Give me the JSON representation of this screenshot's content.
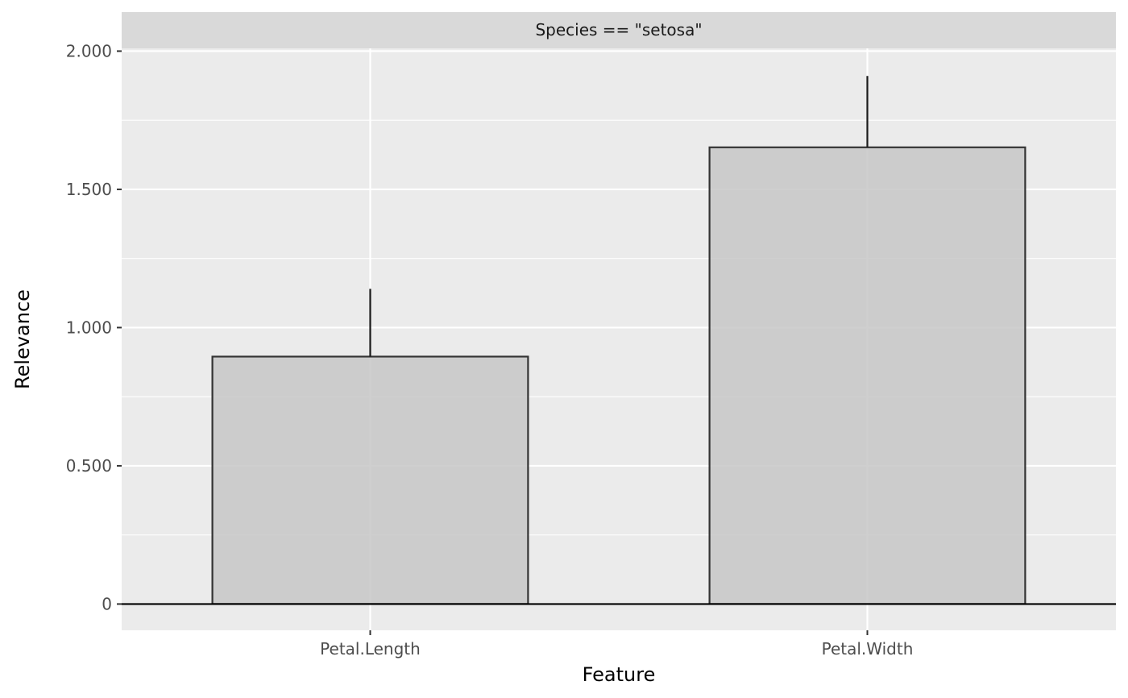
{
  "chart_data": {
    "type": "bar",
    "facet_label": "Species == \"setosa\"",
    "categories": [
      "Petal.Length",
      "Petal.Width"
    ],
    "values": [
      0.895,
      1.652
    ],
    "error_upper": [
      1.14,
      1.91
    ],
    "xlabel": "Feature",
    "ylabel": "Relevance",
    "ylim": [
      -0.095,
      2.01
    ],
    "yticks": [
      0,
      0.5,
      1.0,
      1.5,
      2.0
    ],
    "ytick_labels": [
      "0",
      "0.500",
      "1.000",
      "1.500",
      "2.000"
    ],
    "grid": true,
    "legend": "none",
    "colors": {
      "panel_bg": "#ebebeb",
      "strip_bg": "#d9d9d9",
      "grid": "#ffffff",
      "bar_fill": "#c7c7c7",
      "bar_stroke": "#333333",
      "zero_line": "#000000",
      "error_bar": "#1a1a1a"
    }
  }
}
